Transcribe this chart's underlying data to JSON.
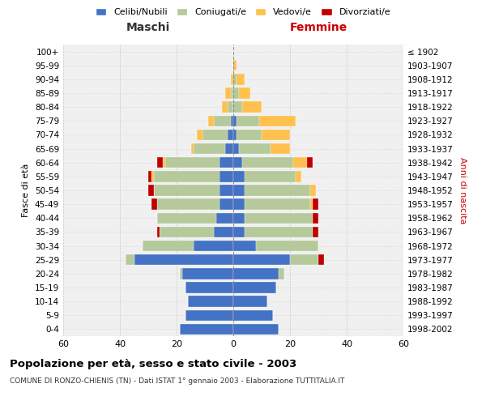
{
  "age_groups": [
    "0-4",
    "5-9",
    "10-14",
    "15-19",
    "20-24",
    "25-29",
    "30-34",
    "35-39",
    "40-44",
    "45-49",
    "50-54",
    "55-59",
    "60-64",
    "65-69",
    "70-74",
    "75-79",
    "80-84",
    "85-89",
    "90-94",
    "95-99",
    "100+"
  ],
  "birth_years": [
    "1998-2002",
    "1993-1997",
    "1988-1992",
    "1983-1987",
    "1978-1982",
    "1973-1977",
    "1968-1972",
    "1963-1967",
    "1958-1962",
    "1953-1957",
    "1948-1952",
    "1943-1947",
    "1938-1942",
    "1933-1937",
    "1928-1932",
    "1923-1927",
    "1918-1922",
    "1913-1917",
    "1908-1912",
    "1903-1907",
    "≤ 1902"
  ],
  "colors": {
    "celibi": "#4472c4",
    "coniugati": "#b5c99a",
    "vedovi": "#ffc04d",
    "divorziati": "#c00000"
  },
  "males": {
    "celibi": [
      19,
      17,
      16,
      17,
      18,
      35,
      14,
      7,
      6,
      5,
      5,
      5,
      5,
      3,
      2,
      1,
      0,
      0,
      0,
      0,
      0
    ],
    "coniugati": [
      0,
      0,
      0,
      0,
      1,
      3,
      18,
      19,
      21,
      22,
      23,
      23,
      19,
      11,
      9,
      6,
      2,
      1,
      0,
      0,
      0
    ],
    "vedovi": [
      0,
      0,
      0,
      0,
      0,
      0,
      0,
      0,
      0,
      0,
      0,
      1,
      1,
      1,
      2,
      2,
      2,
      2,
      1,
      0,
      0
    ],
    "divorziati": [
      0,
      0,
      0,
      0,
      0,
      0,
      0,
      1,
      0,
      2,
      2,
      1,
      2,
      0,
      0,
      0,
      0,
      0,
      0,
      0,
      0
    ]
  },
  "females": {
    "celibi": [
      16,
      14,
      12,
      15,
      16,
      20,
      8,
      4,
      4,
      4,
      4,
      4,
      3,
      2,
      1,
      1,
      0,
      0,
      0,
      0,
      0
    ],
    "coniugati": [
      0,
      0,
      0,
      0,
      2,
      10,
      22,
      24,
      24,
      23,
      23,
      18,
      18,
      11,
      9,
      8,
      3,
      2,
      1,
      0,
      0
    ],
    "vedovi": [
      0,
      0,
      0,
      0,
      0,
      0,
      0,
      0,
      0,
      1,
      2,
      2,
      5,
      7,
      10,
      13,
      7,
      4,
      3,
      1,
      0
    ],
    "divorziati": [
      0,
      0,
      0,
      0,
      0,
      2,
      0,
      2,
      2,
      2,
      0,
      0,
      2,
      0,
      0,
      0,
      0,
      0,
      0,
      0,
      0
    ]
  },
  "title": "Popolazione per età, sesso e stato civile - 2003",
  "subtitle": "COMUNE DI RONZO-CHIENIS (TN) - Dati ISTAT 1° gennaio 2003 - Elaborazione TUTTITALIA.IT",
  "xlabel_left": "Maschi",
  "xlabel_right": "Femmine",
  "ylabel_left": "Fasce di età",
  "ylabel_right": "Anni di nascita",
  "xlim": 60,
  "background_color": "#f0f0f0",
  "grid_color": "#cccccc",
  "legend_labels": [
    "Celibi/Nubili",
    "Coniugati/e",
    "Vedovi/e",
    "Divorziati/e"
  ]
}
